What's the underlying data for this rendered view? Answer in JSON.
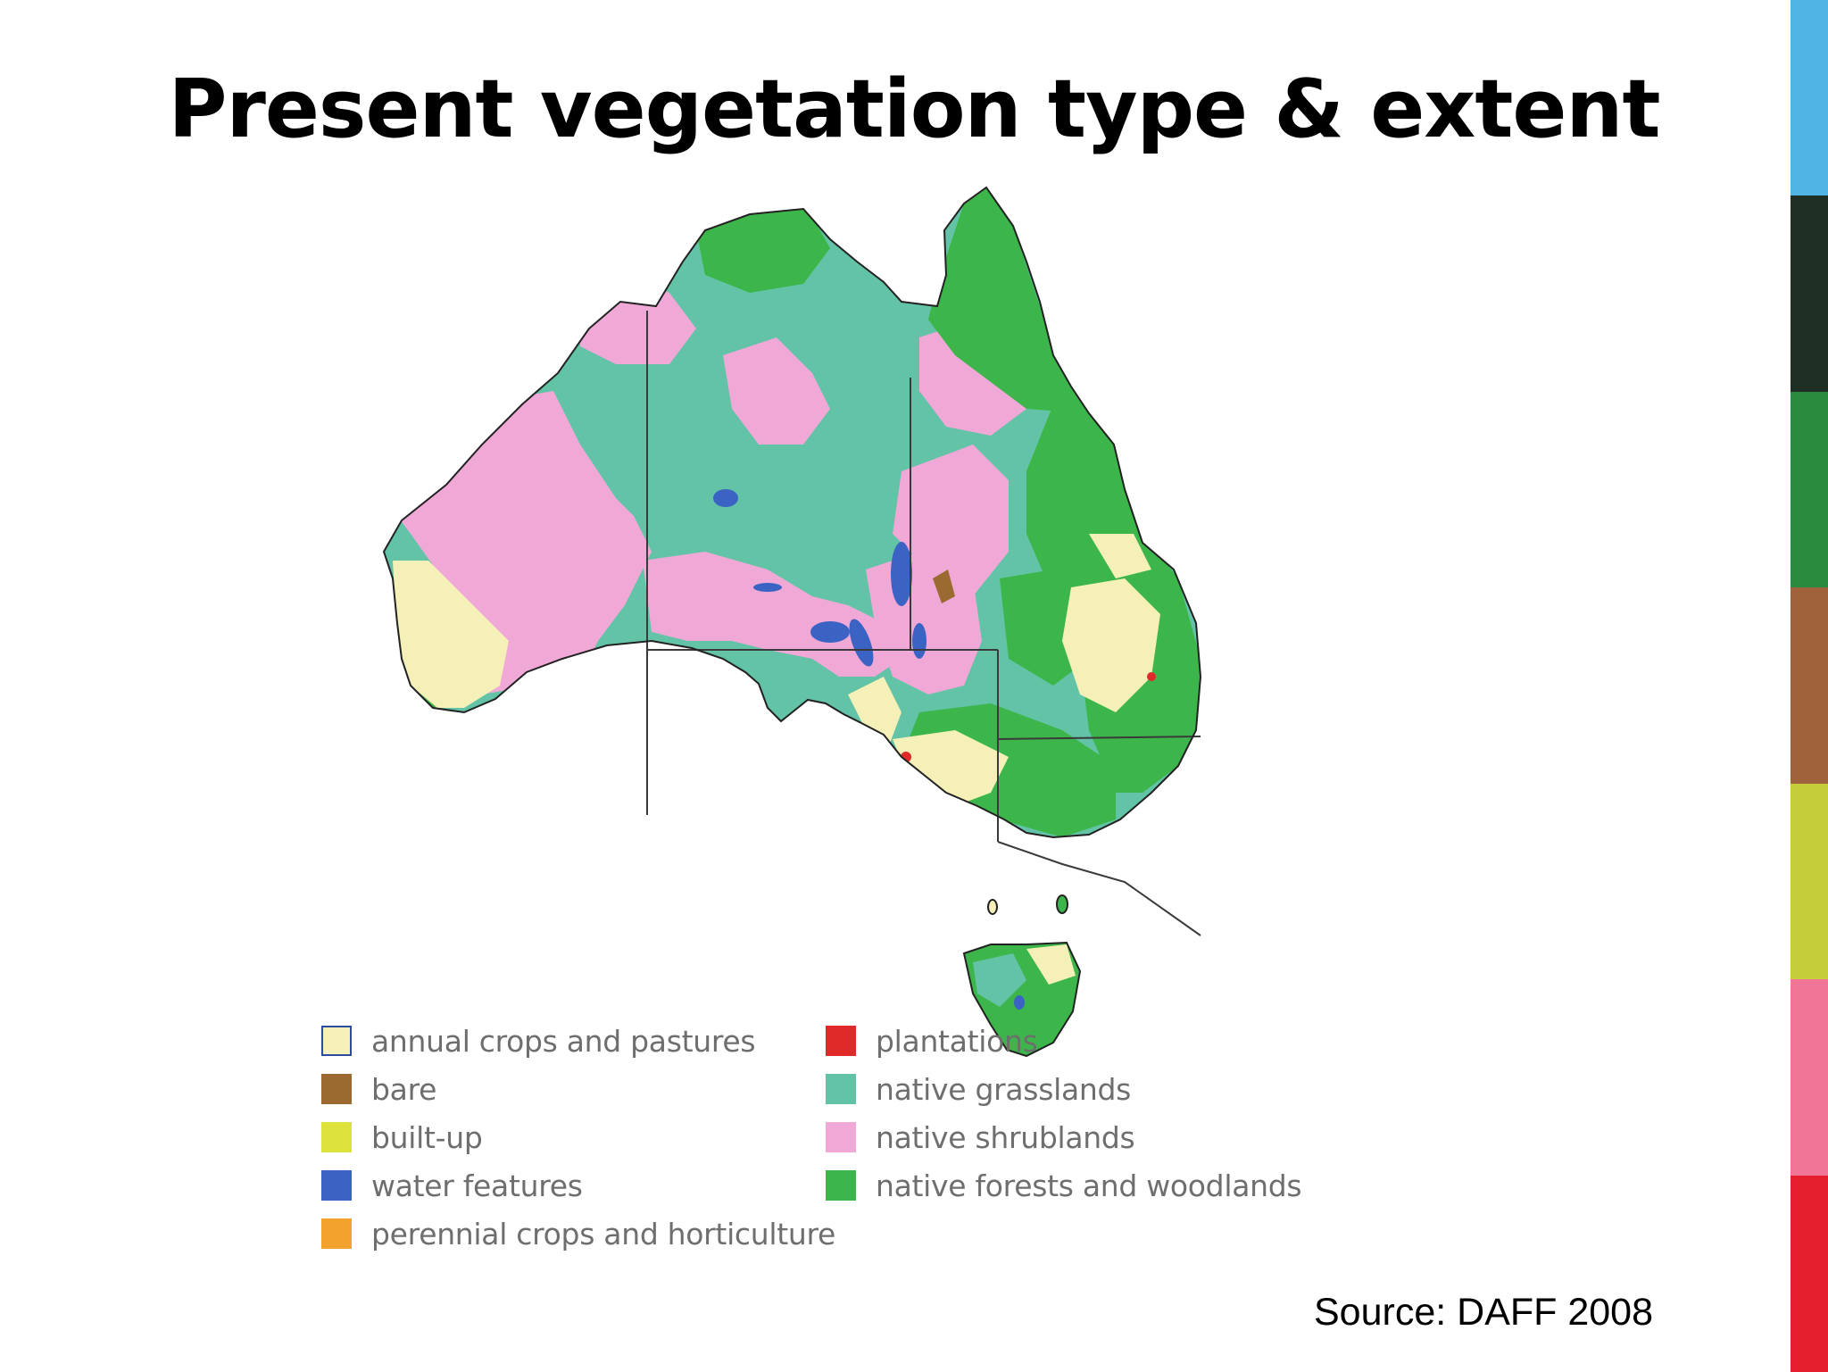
{
  "title": "Present vegetation type & extent",
  "source": "Source: DAFF 2008",
  "legend": {
    "items": [
      {
        "label": "annual crops and pastures",
        "color": "#f4f0b8",
        "border": "#2c4aa0"
      },
      {
        "label": "bare",
        "color": "#9a6a30"
      },
      {
        "label": "built-up",
        "color": "#dde23b"
      },
      {
        "label": "water features",
        "color": "#3a63c4"
      },
      {
        "label": "perennial crops and horticulture",
        "color": "#f4a22e"
      },
      {
        "label": "plantations",
        "color": "#e02a2a"
      },
      {
        "label": "native grasslands",
        "color": "#62c3a7"
      },
      {
        "label": "native shrublands",
        "color": "#f0a8d6"
      },
      {
        "label": "native forests and woodlands",
        "color": "#3cb64a"
      }
    ]
  },
  "map": {
    "colors": {
      "grassland": "#62c3a7",
      "shrubland": "#f0a8d6",
      "forest": "#3cb64a",
      "crops": "#f4f0b8",
      "water": "#3a63c4",
      "bare": "#9a6a30",
      "plantation": "#e02a2a",
      "builtup": "#dde23b"
    }
  },
  "accent_bar": [
    "#4fb3e3",
    "#1f2f24",
    "#2a8a3e",
    "#a0623a",
    "#c5cd3a",
    "#f07596",
    "#e4202f"
  ]
}
